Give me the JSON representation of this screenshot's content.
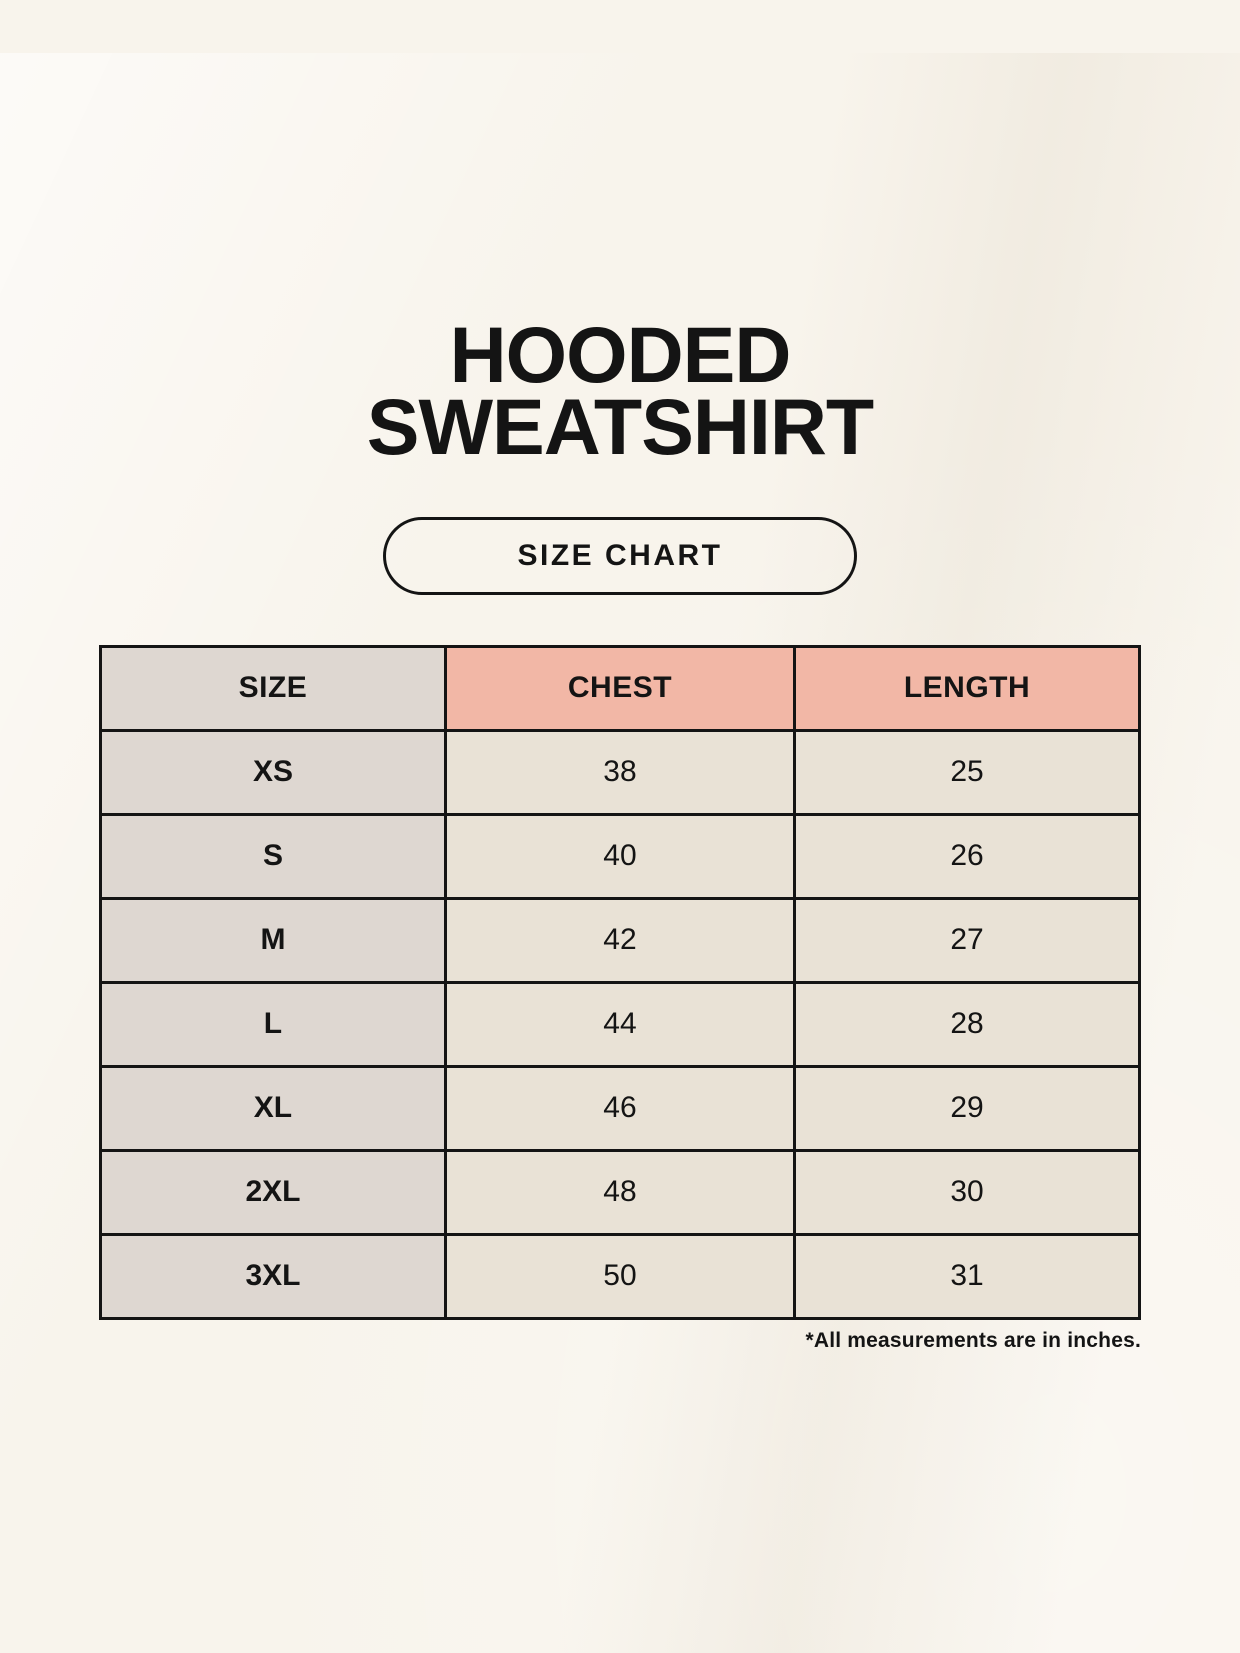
{
  "page": {
    "title_line1": "HOODED",
    "title_line2": "SWEATSHIRT",
    "size_chart_button_label": "SIZE CHART",
    "footnote": "*All measurements are in inches."
  },
  "table": {
    "columns": [
      "SIZE",
      "CHEST",
      "LENGTH"
    ],
    "rows": [
      {
        "size": "XS",
        "chest": "38",
        "length": "25"
      },
      {
        "size": "S",
        "chest": "40",
        "length": "26"
      },
      {
        "size": "M",
        "chest": "42",
        "length": "27"
      },
      {
        "size": "L",
        "chest": "44",
        "length": "28"
      },
      {
        "size": "XL",
        "chest": "46",
        "length": "29"
      },
      {
        "size": "2XL",
        "chest": "48",
        "length": "30"
      },
      {
        "size": "3XL",
        "chest": "50",
        "length": "31"
      }
    ]
  },
  "colors": {
    "background": "#f8f4ec",
    "header_accent": "#f2b7a6",
    "size_column": "#ded7d1",
    "cell": "#e9e2d6",
    "border": "#141414",
    "text": "#141414"
  },
  "chart_data": {
    "type": "table",
    "title": "HOODED SWEATSHIRT",
    "subtitle": "SIZE CHART",
    "columns": [
      "SIZE",
      "CHEST",
      "LENGTH"
    ],
    "rows": [
      [
        "XS",
        38,
        25
      ],
      [
        "S",
        40,
        26
      ],
      [
        "M",
        42,
        27
      ],
      [
        "L",
        44,
        28
      ],
      [
        "XL",
        46,
        29
      ],
      [
        "2XL",
        48,
        30
      ],
      [
        "3XL",
        50,
        31
      ]
    ],
    "footnote": "*All measurements are in inches."
  }
}
